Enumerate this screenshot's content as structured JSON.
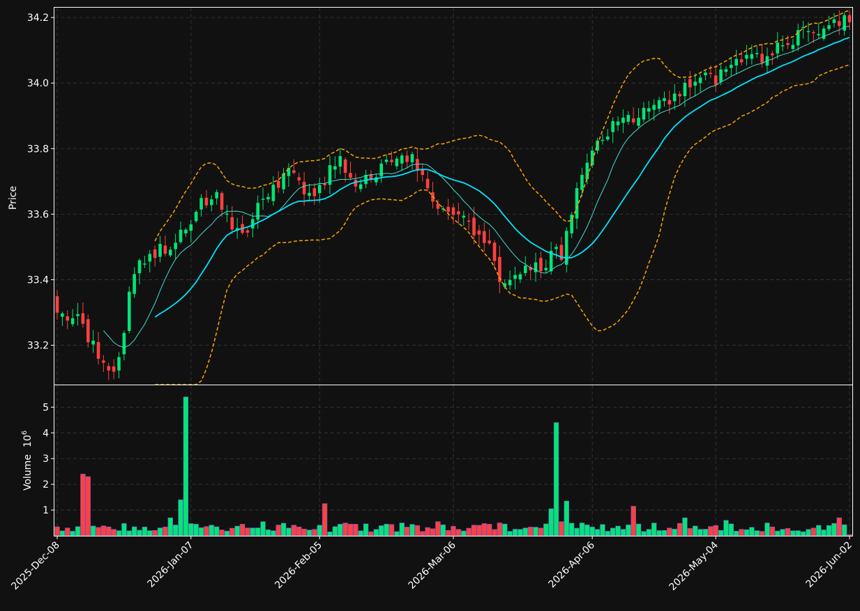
{
  "chart_data": {
    "type": "candlestick",
    "title": "",
    "colors": {
      "background": "#111111",
      "up": "#00e676",
      "down": "#ff4040",
      "ma_fast": "#40e0d0",
      "ma_slow": "#00e5ff",
      "bands": "#ffa500",
      "grid": "#3a3a3a"
    },
    "x_tick_labels": [
      "2025-Dec-08",
      "2026-Jan-07",
      "2026-Feb-05",
      "2026-Mar-06",
      "2026-Apr-06",
      "2026-May-04",
      "2026-Jun-02"
    ],
    "price_panel": {
      "ylabel": "Price",
      "ylim": [
        33.08,
        34.23
      ],
      "y_ticks": [
        "33.2",
        "33.4",
        "33.6",
        "33.8",
        "34.0",
        "34.2"
      ],
      "grid": true
    },
    "volume_panel": {
      "ylabel": "Volume",
      "exponent": "10",
      "exponent_sup": "6",
      "ylim": [
        0,
        5.85
      ],
      "y_ticks": [
        "1",
        "2",
        "3",
        "4",
        "5"
      ],
      "grid": true
    },
    "overlays": [
      "moving average (fast)",
      "moving average (slow)",
      "upper band",
      "lower band"
    ],
    "anchors": [
      {
        "i": 0,
        "c": 33.3,
        "v": 0.35
      },
      {
        "i": 5,
        "c": 33.27,
        "v": 2.4
      },
      {
        "i": 6,
        "c": 33.22,
        "v": 2.3
      },
      {
        "i": 11,
        "c": 33.12,
        "v": 0.25
      },
      {
        "i": 12,
        "c": 33.18,
        "v": 0.2
      },
      {
        "i": 15,
        "c": 33.42,
        "v": 0.35
      },
      {
        "i": 18,
        "c": 33.47,
        "v": 0.2
      },
      {
        "i": 22,
        "c": 33.5,
        "v": 0.7
      },
      {
        "i": 24,
        "c": 33.56,
        "v": 1.4
      },
      {
        "i": 25,
        "c": 33.56,
        "v": 5.4
      },
      {
        "i": 27,
        "c": 33.62,
        "v": 0.45
      },
      {
        "i": 31,
        "c": 33.66,
        "v": 0.35
      },
      {
        "i": 36,
        "c": 33.52,
        "v": 0.45
      },
      {
        "i": 40,
        "c": 33.65,
        "v": 0.55
      },
      {
        "i": 45,
        "c": 33.72,
        "v": 0.3
      },
      {
        "i": 50,
        "c": 33.66,
        "v": 0.25
      },
      {
        "i": 52,
        "c": 33.7,
        "v": 1.25
      },
      {
        "i": 55,
        "c": 33.78,
        "v": 0.45
      },
      {
        "i": 58,
        "c": 33.68,
        "v": 0.45
      },
      {
        "i": 62,
        "c": 33.73,
        "v": 0.25
      },
      {
        "i": 67,
        "c": 33.8,
        "v": 0.5
      },
      {
        "i": 70,
        "c": 33.75,
        "v": 0.4
      },
      {
        "i": 74,
        "c": 33.63,
        "v": 0.55
      },
      {
        "i": 78,
        "c": 33.62,
        "v": 0.25
      },
      {
        "i": 84,
        "c": 33.5,
        "v": 0.45
      },
      {
        "i": 86,
        "c": 33.4,
        "v": 0.5
      },
      {
        "i": 90,
        "c": 33.44,
        "v": 0.25
      },
      {
        "i": 94,
        "c": 33.43,
        "v": 0.3
      },
      {
        "i": 96,
        "c": 33.48,
        "v": 1.05
      },
      {
        "i": 97,
        "c": 33.5,
        "v": 4.4
      },
      {
        "i": 98,
        "c": 33.44,
        "v": 0.55
      },
      {
        "i": 99,
        "c": 33.54,
        "v": 1.35
      },
      {
        "i": 102,
        "c": 33.72,
        "v": 0.5
      },
      {
        "i": 105,
        "c": 33.8,
        "v": 0.25
      },
      {
        "i": 108,
        "c": 33.86,
        "v": 0.3
      },
      {
        "i": 110,
        "c": 33.9,
        "v": 0.25
      },
      {
        "i": 112,
        "c": 33.88,
        "v": 1.15
      },
      {
        "i": 115,
        "c": 33.93,
        "v": 0.25
      },
      {
        "i": 119,
        "c": 33.95,
        "v": 0.3
      },
      {
        "i": 122,
        "c": 34.0,
        "v": 0.7
      },
      {
        "i": 125,
        "c": 34.03,
        "v": 0.25
      },
      {
        "i": 128,
        "c": 34.0,
        "v": 0.4
      },
      {
        "i": 130,
        "c": 34.05,
        "v": 0.6
      },
      {
        "i": 133,
        "c": 34.08,
        "v": 0.25
      },
      {
        "i": 136,
        "c": 34.1,
        "v": 0.2
      },
      {
        "i": 138,
        "c": 34.07,
        "v": 0.5
      },
      {
        "i": 141,
        "c": 34.12,
        "v": 0.25
      },
      {
        "i": 144,
        "c": 34.15,
        "v": 0.2
      },
      {
        "i": 147,
        "c": 34.16,
        "v": 0.3
      },
      {
        "i": 150,
        "c": 34.17,
        "v": 0.4
      },
      {
        "i": 152,
        "c": 34.18,
        "v": 0.7
      },
      {
        "i": 154,
        "c": 34.19,
        "v": 0.05
      }
    ]
  }
}
